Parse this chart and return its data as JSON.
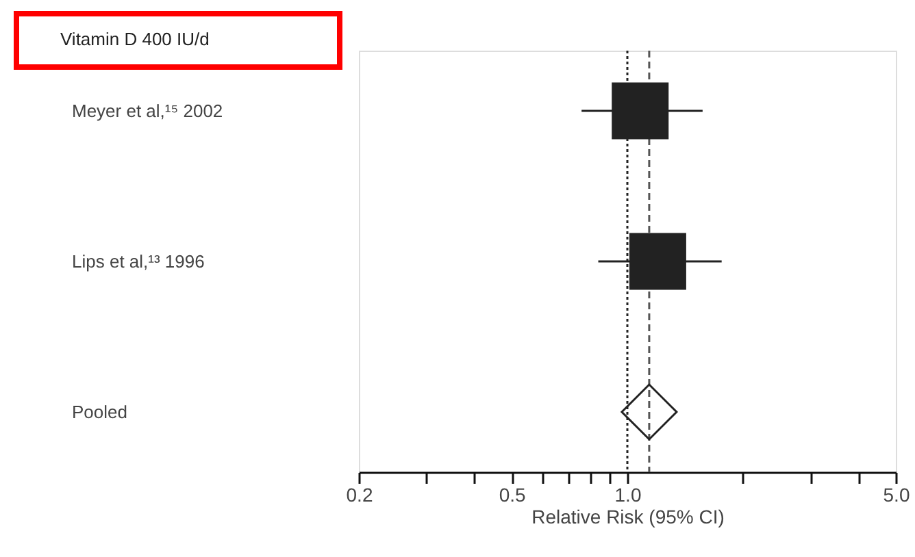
{
  "chart_data": {
    "type": "scatter",
    "orientation": "horizontal",
    "categories": [
      "Meyer et al,¹⁵ 2002",
      "Lips et al,¹³ 1996",
      "Pooled"
    ],
    "series": [
      {
        "marker": "square",
        "color": "#222222",
        "values": [
          1.08,
          1.2,
          null
        ],
        "errors": [
          [
            0.76,
            1.57
          ],
          [
            0.84,
            1.76
          ],
          null
        ]
      },
      {
        "marker": "diamond",
        "color": "#222222",
        "values": [
          null,
          null,
          1.14
        ]
      }
    ],
    "xlabel": "Relative Risk (95% CI)",
    "log": "x",
    "xlim": [
      0.2,
      5
    ],
    "xticks": [
      0.2,
      {
        "value": 0.3,
        "label": null
      },
      {
        "value": 0.4,
        "label": null
      },
      0.5,
      {
        "value": 0.6,
        "label": null
      },
      {
        "value": 0.7,
        "label": null
      },
      {
        "value": 0.8,
        "label": null
      },
      {
        "value": 0.9,
        "label": null
      },
      {
        "value": 1,
        "label": "1.0"
      },
      {
        "value": 2,
        "label": null
      },
      {
        "value": 3,
        "label": null
      },
      {
        "value": 4,
        "label": null
      },
      {
        "value": 5,
        "label": "5.0"
      }
    ],
    "ref_lines": [
      {
        "axis": "x",
        "value": 1,
        "line_style": "dotted",
        "color": "#222222"
      },
      {
        "axis": "x",
        "value": 1.14,
        "line_style": "dashed",
        "color": "#555555"
      }
    ],
    "annotations": [
      "Vitamin D 400 IU/d"
    ],
    "grid": false
  }
}
